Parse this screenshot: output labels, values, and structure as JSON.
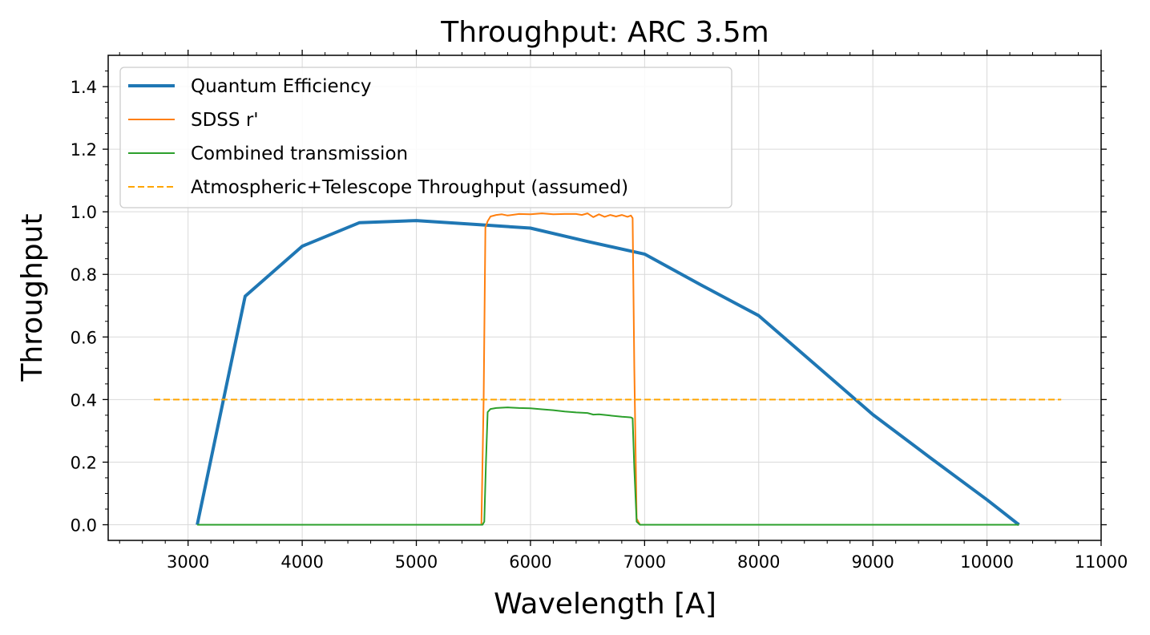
{
  "chart_data": {
    "type": "line",
    "title": "Throughput: ARC 3.5m",
    "xlabel": "Wavelength [A]",
    "ylabel": "Throughput",
    "xlim": [
      2300,
      11000
    ],
    "ylim": [
      -0.05,
      1.5
    ],
    "xticks": [
      3000,
      4000,
      5000,
      6000,
      7000,
      8000,
      9000,
      10000,
      11000
    ],
    "yticks": [
      0.0,
      0.2,
      0.4,
      0.6,
      0.8,
      1.0,
      1.2,
      1.4
    ],
    "xtick_labels": [
      "3000",
      "4000",
      "5000",
      "6000",
      "7000",
      "8000",
      "9000",
      "10000",
      "11000"
    ],
    "ytick_labels": [
      "0.0",
      "0.2",
      "0.4",
      "0.6",
      "0.8",
      "1.0",
      "1.2",
      "1.4"
    ],
    "grid": true,
    "legend_position": "upper-left",
    "series": [
      {
        "name": "Quantum Efficiency",
        "color": "#1f77b4",
        "style": "solid",
        "x": [
          3080,
          3500,
          4000,
          4500,
          5000,
          5500,
          6000,
          6500,
          7000,
          7500,
          8000,
          8500,
          9000,
          9500,
          10000,
          10280
        ],
        "y": [
          0.0,
          0.73,
          0.89,
          0.965,
          0.972,
          0.96,
          0.948,
          0.905,
          0.865,
          0.765,
          0.668,
          0.51,
          0.352,
          0.215,
          0.08,
          0.0
        ]
      },
      {
        "name": "SDSS r'",
        "color": "#ff7f0e",
        "style": "solid",
        "x": [
          5570,
          5590,
          5605,
          5625,
          5650,
          5700,
          5750,
          5800,
          5900,
          6000,
          6100,
          6200,
          6300,
          6400,
          6450,
          6500,
          6550,
          6600,
          6650,
          6700,
          6750,
          6800,
          6850,
          6880,
          6895,
          6910,
          6930,
          6960
        ],
        "y": [
          0.0,
          0.4,
          0.95,
          0.97,
          0.985,
          0.99,
          0.992,
          0.988,
          0.993,
          0.992,
          0.995,
          0.992,
          0.993,
          0.993,
          0.99,
          0.995,
          0.983,
          0.992,
          0.984,
          0.99,
          0.985,
          0.99,
          0.984,
          0.988,
          0.98,
          0.5,
          0.02,
          0.0
        ]
      },
      {
        "name": "Combined transmission",
        "color": "#2ca02c",
        "style": "solid",
        "x": [
          3080,
          5580,
          5595,
          5610,
          5625,
          5650,
          5700,
          5800,
          5900,
          6000,
          6100,
          6200,
          6300,
          6400,
          6500,
          6550,
          6600,
          6700,
          6800,
          6850,
          6880,
          6895,
          6910,
          6930,
          6960,
          10280
        ],
        "y": [
          0.0,
          0.0,
          0.01,
          0.2,
          0.36,
          0.37,
          0.373,
          0.375,
          0.373,
          0.372,
          0.369,
          0.366,
          0.362,
          0.359,
          0.357,
          0.352,
          0.353,
          0.349,
          0.345,
          0.344,
          0.343,
          0.34,
          0.18,
          0.01,
          0.0,
          0.0
        ]
      },
      {
        "name": "Atmospheric+Telescope Throughput (assumed)",
        "color": "#ffa500",
        "style": "dashed",
        "x": [
          2700,
          10650
        ],
        "y": [
          0.4,
          0.4
        ]
      }
    ]
  }
}
